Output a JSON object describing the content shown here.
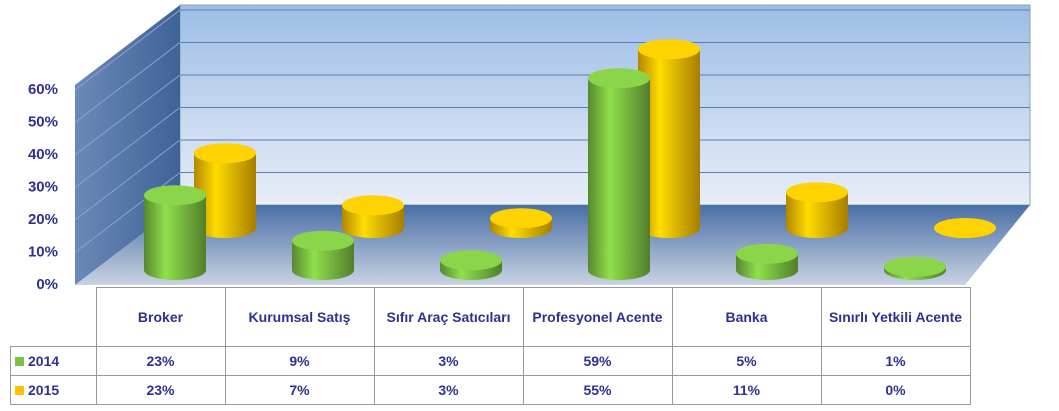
{
  "chart_data": {
    "type": "bar3d",
    "categories": [
      "Broker",
      "Kurumsal Satış",
      "Sıfır Araç Satıcıları",
      "Profesyonel Acente",
      "Banka",
      "Sınırlı Yetkili Acente"
    ],
    "series": [
      {
        "name": "2014",
        "color": "#7dc242",
        "values": [
          23,
          9,
          3,
          59,
          5,
          1
        ],
        "value_labels": [
          "23%",
          "9%",
          "3%",
          "59%",
          "5%",
          "1%"
        ]
      },
      {
        "name": "2015",
        "color": "#ffc000",
        "values": [
          23,
          7,
          3,
          55,
          11,
          0
        ],
        "value_labels": [
          "23%",
          "7%",
          "3%",
          "55%",
          "11%",
          "0%"
        ]
      }
    ],
    "ylim": [
      0,
      60
    ],
    "yticks": [
      {
        "value": 0,
        "label": "0%"
      },
      {
        "value": 10,
        "label": "10%"
      },
      {
        "value": 20,
        "label": "20%"
      },
      {
        "value": 30,
        "label": "30%"
      },
      {
        "value": 40,
        "label": "40%"
      },
      {
        "value": 50,
        "label": "50%"
      },
      {
        "value": 60,
        "label": "60%"
      }
    ],
    "grid": true
  }
}
